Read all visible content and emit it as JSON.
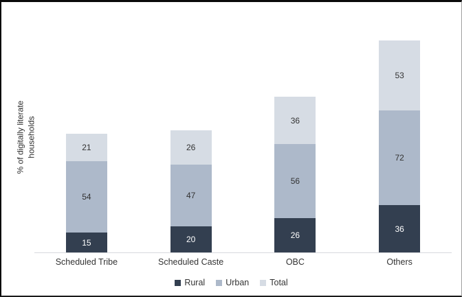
{
  "chart_data": {
    "type": "bar",
    "subtype": "stacked",
    "categories": [
      "Scheduled Tribe",
      "Scheduled Caste",
      "OBC",
      "Others"
    ],
    "series": [
      {
        "name": "Rural",
        "values": [
          15,
          20,
          26,
          36
        ],
        "color": "#333F50",
        "label_color": "#FFFFFF"
      },
      {
        "name": "Urban",
        "values": [
          54,
          47,
          56,
          72
        ],
        "color": "#ADB9CA",
        "label_color": "#333333"
      },
      {
        "name": "Total",
        "values": [
          21,
          26,
          36,
          53
        ],
        "color": "#D6DCE4",
        "label_color": "#333333"
      }
    ],
    "title": "",
    "xlabel": "",
    "ylabel": "% of digitally literate households",
    "ylabel_lines": [
      "% of digitally literate",
      "households"
    ],
    "ylim": [
      0,
      180
    ],
    "y_axis_ticks_visible": false,
    "grid": false,
    "data_labels": true,
    "legend_position": "bottom",
    "axis_line_color": "#D7D9DD"
  }
}
